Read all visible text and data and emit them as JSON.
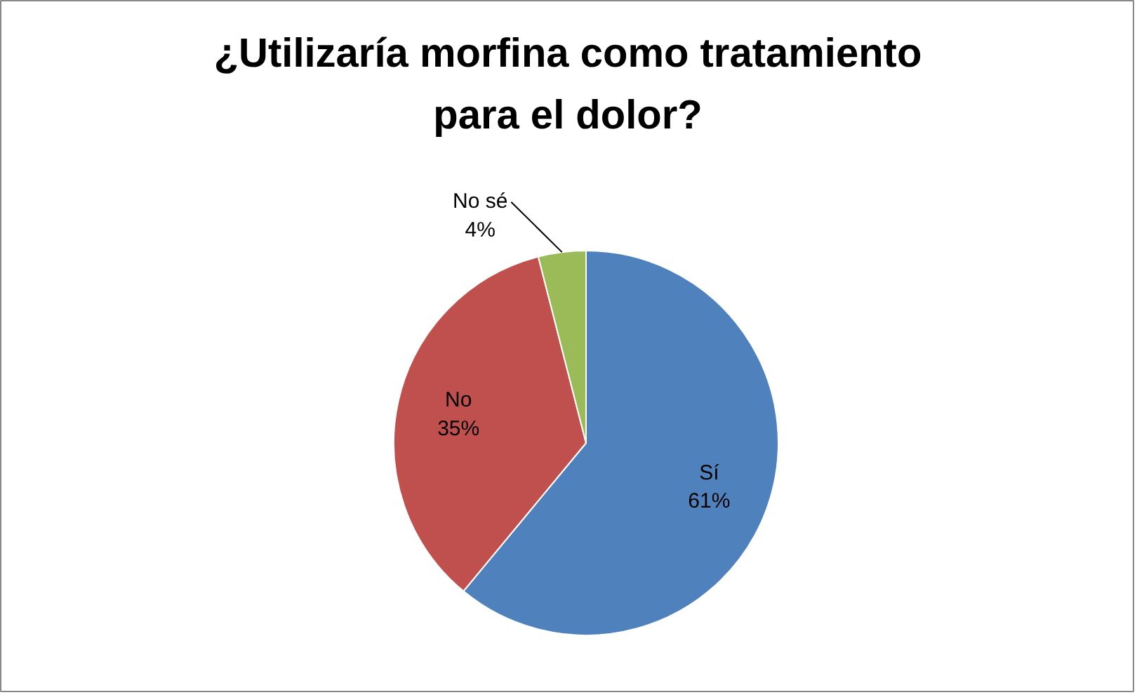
{
  "chart_data": {
    "type": "pie",
    "title": "¿Utilizaría morfina como tratamiento para el dolor?",
    "categories": [
      "Sí",
      "No",
      "No sé"
    ],
    "values": [
      61,
      35,
      4
    ],
    "value_labels": [
      "61%",
      "35%",
      "4%"
    ],
    "colors": [
      "#4f81bd",
      "#c0504d",
      "#9bbb59"
    ]
  }
}
